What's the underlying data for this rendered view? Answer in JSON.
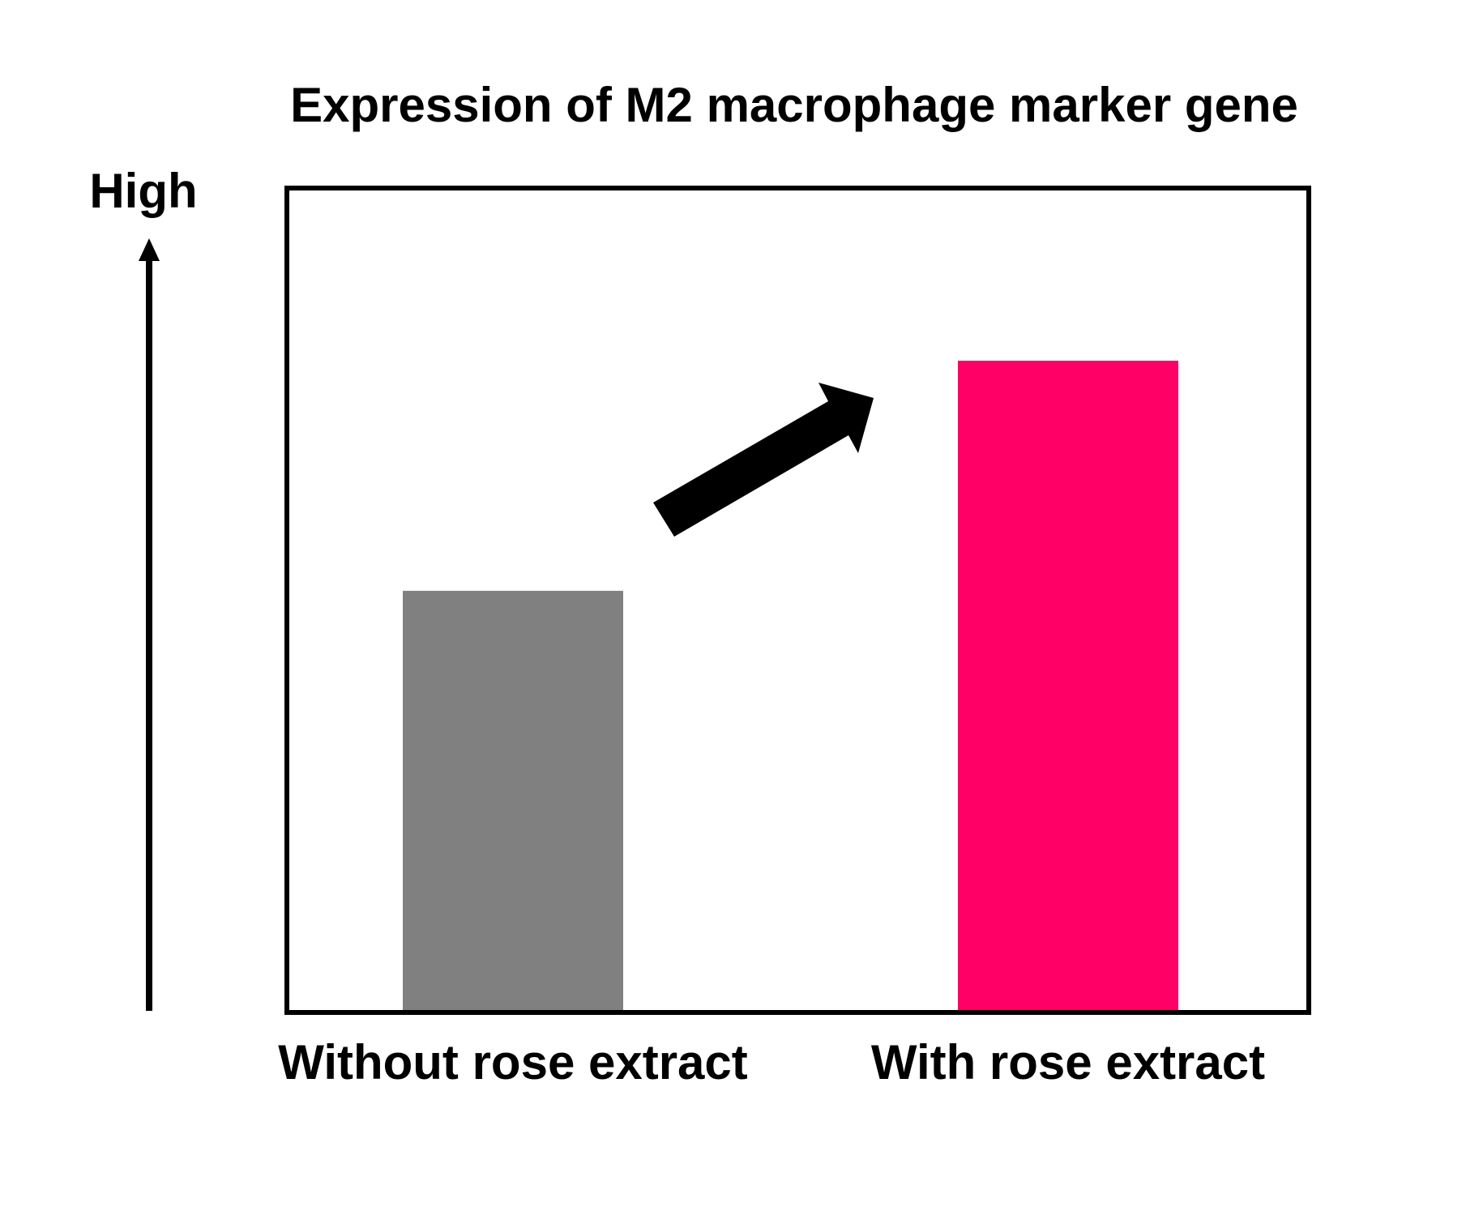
{
  "chart_data": {
    "type": "bar",
    "title": "Expression of M2 macrophage marker gene",
    "y_label": "High",
    "categories": [
      "Without rose extract",
      "With rose extract"
    ],
    "series": [
      {
        "name": null,
        "colors": [
          "#808080",
          "#ff0066"
        ],
        "values": [
          51,
          79
        ]
      }
    ],
    "ylim": [
      0,
      100
    ]
  }
}
